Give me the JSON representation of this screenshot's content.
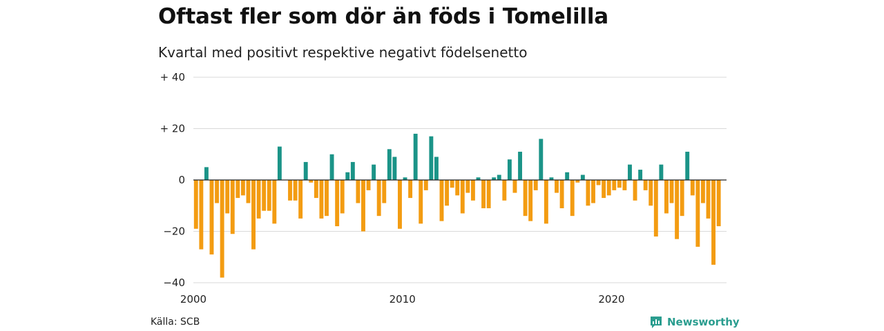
{
  "title": "Oftast fler som dör än föds i Tomelilla",
  "subtitle": "Kvartal med positivt respektive negativt födelsenetto",
  "source": "Källa: SCB",
  "brand": "Newsworthy",
  "colors": {
    "positive": "#1b9488",
    "negative": "#f39c12",
    "grid": "#d9d9d9",
    "zero": "#222222"
  },
  "chart_data": {
    "type": "bar",
    "title": "Oftast fler som dör än föds i Tomelilla",
    "subtitle": "Kvartal med positivt respektive negativt födelsenetto",
    "ylim": [
      -40,
      40
    ],
    "y_ticks": [
      {
        "value": 40,
        "label": "+ 40"
      },
      {
        "value": 20,
        "label": "+ 20"
      },
      {
        "value": 0,
        "label": "0"
      },
      {
        "value": -20,
        "label": "−20"
      },
      {
        "value": -40,
        "label": "−40"
      }
    ],
    "x_ticks": [
      {
        "year": 2000,
        "label": "2000"
      },
      {
        "year": 2010,
        "label": "2010"
      },
      {
        "year": 2020,
        "label": "2020"
      }
    ],
    "start_year": 2000,
    "end_year": 2025.5,
    "grid": true,
    "values": [
      -19,
      -27,
      5,
      -29,
      -9,
      -38,
      -13,
      -21,
      -7,
      -6,
      -9,
      -27,
      -15,
      -12,
      -12,
      -17,
      13,
      0,
      -8,
      -8,
      -15,
      7,
      -1,
      -7,
      -15,
      -14,
      10,
      -18,
      -13,
      3,
      7,
      -9,
      -20,
      -4,
      6,
      -14,
      -9,
      12,
      9,
      -19,
      1,
      -7,
      18,
      -17,
      -4,
      17,
      9,
      -16,
      -10,
      -3,
      -6,
      -13,
      -5,
      -8,
      1,
      -11,
      -11,
      1,
      2,
      -8,
      8,
      -5,
      11,
      -14,
      -16,
      -4,
      16,
      -17,
      1,
      -5,
      -11,
      3,
      -14,
      -1,
      2,
      -10,
      -9,
      -2,
      -7,
      -6,
      -4,
      -3,
      -4,
      6,
      -8,
      4,
      -4,
      -10,
      -22,
      6,
      -13,
      -9,
      -23,
      -14,
      11,
      -6,
      -26,
      -9,
      -15,
      -33,
      -18
    ]
  }
}
